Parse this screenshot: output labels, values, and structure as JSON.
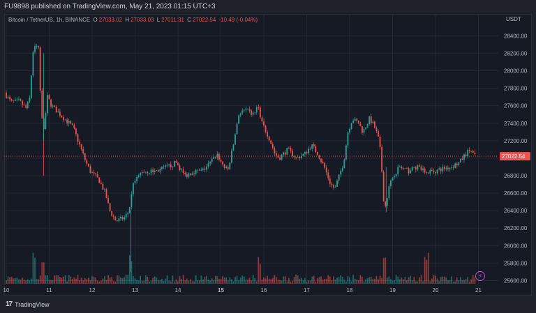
{
  "header": {
    "published_line": "FU9898 published on TradingView.com, May 21, 2023 01:15 UTC+3"
  },
  "legend": {
    "symbol": "Bitcoin / TetherUS, 1h, BINANCE",
    "open_label": "O",
    "open": "27033.02",
    "high_label": "H",
    "high": "27033.03",
    "low_label": "L",
    "low": "27011.31",
    "close_label": "C",
    "close": "27022.54",
    "change": "-10.49 (-0.04%)"
  },
  "price_axis": {
    "unit": "USDT",
    "last_price_label": "27022.54",
    "last_price_color": "#ef5350"
  },
  "footer": {
    "logo_text": "TradingView",
    "logo_mark": "17"
  },
  "colors": {
    "up": "#26a69a",
    "down": "#ef5350",
    "background": "#161a25",
    "grid": "#242833"
  },
  "icons": {
    "lightning": "lightning-icon"
  },
  "chart_data": {
    "type": "candlestick",
    "x_tick_labels": [
      "10",
      "11",
      "12",
      "13",
      "14",
      "15",
      "16",
      "17",
      "18",
      "19",
      "20",
      "21"
    ],
    "y_tick_labels": [
      "25600.00",
      "25800.00",
      "26000.00",
      "26200.00",
      "26400.00",
      "26600.00",
      "26800.00",
      "27000.00",
      "27200.00",
      "27400.00",
      "27600.00",
      "27800.00",
      "28000.00",
      "28200.00",
      "28400.00"
    ],
    "ylim": [
      25540,
      28650
    ],
    "grid": true,
    "price_path_days": [
      [
        10.0,
        27750
      ],
      [
        10.15,
        27640
      ],
      [
        10.35,
        27650
      ],
      [
        10.5,
        27570
      ],
      [
        10.6,
        27700
      ],
      [
        10.65,
        28200
      ],
      [
        10.72,
        28300
      ],
      [
        10.8,
        28250
      ],
      [
        10.85,
        27550
      ],
      [
        10.92,
        27350
      ],
      [
        11.0,
        27700
      ],
      [
        11.1,
        27600
      ],
      [
        11.3,
        27500
      ],
      [
        11.5,
        27400
      ],
      [
        11.6,
        27350
      ],
      [
        11.75,
        27150
      ],
      [
        11.9,
        26950
      ],
      [
        12.0,
        26850
      ],
      [
        12.2,
        26750
      ],
      [
        12.35,
        26600
      ],
      [
        12.45,
        26400
      ],
      [
        12.6,
        26280
      ],
      [
        12.8,
        26320
      ],
      [
        12.9,
        26400
      ],
      [
        13.0,
        26700
      ],
      [
        13.2,
        26850
      ],
      [
        13.5,
        26850
      ],
      [
        13.8,
        26900
      ],
      [
        14.0,
        26950
      ],
      [
        14.2,
        26800
      ],
      [
        14.4,
        26850
      ],
      [
        14.6,
        26850
      ],
      [
        14.8,
        26950
      ],
      [
        14.95,
        27050
      ],
      [
        15.05,
        26950
      ],
      [
        15.2,
        26850
      ],
      [
        15.35,
        27200
      ],
      [
        15.45,
        27500
      ],
      [
        15.6,
        27550
      ],
      [
        15.8,
        27500
      ],
      [
        15.9,
        27600
      ],
      [
        16.0,
        27400
      ],
      [
        16.15,
        27250
      ],
      [
        16.3,
        27050
      ],
      [
        16.4,
        27000
      ],
      [
        16.6,
        27100
      ],
      [
        16.8,
        27000
      ],
      [
        17.0,
        27050
      ],
      [
        17.15,
        27150
      ],
      [
        17.3,
        27050
      ],
      [
        17.45,
        26900
      ],
      [
        17.6,
        26700
      ],
      [
        17.7,
        26650
      ],
      [
        17.8,
        26800
      ],
      [
        17.9,
        26950
      ],
      [
        18.0,
        27300
      ],
      [
        18.1,
        27450
      ],
      [
        18.25,
        27400
      ],
      [
        18.35,
        27300
      ],
      [
        18.5,
        27450
      ],
      [
        18.6,
        27380
      ],
      [
        18.7,
        27250
      ],
      [
        18.75,
        27100
      ],
      [
        18.8,
        26800
      ],
      [
        18.85,
        26400
      ],
      [
        18.95,
        26650
      ],
      [
        19.05,
        26800
      ],
      [
        19.2,
        26900
      ],
      [
        19.4,
        26850
      ],
      [
        19.6,
        26900
      ],
      [
        19.8,
        26850
      ],
      [
        20.0,
        26850
      ],
      [
        20.2,
        26880
      ],
      [
        20.4,
        26900
      ],
      [
        20.6,
        26950
      ],
      [
        20.75,
        27050
      ],
      [
        20.85,
        27100
      ],
      [
        20.95,
        27022.54
      ]
    ],
    "volume_spike_days": [
      10.65,
      10.85,
      12.9,
      15.9,
      18.8,
      19.8
    ],
    "last_price": 27022.54
  }
}
